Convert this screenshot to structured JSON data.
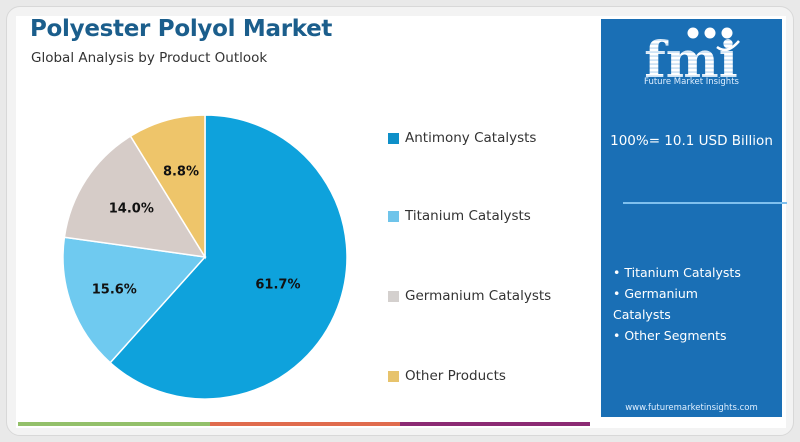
{
  "header": {
    "title": "Polyester Polyol Market",
    "subtitle": "Global Analysis by Product Outlook"
  },
  "chart_data": {
    "type": "pie",
    "title": "Polyester Polyol Market",
    "subtitle": "Global Analysis by Product Outlook",
    "categories": [
      "Antimony Catalysts",
      "Titanium Catalysts",
      "Germanium Catalysts",
      "Other Products"
    ],
    "values": [
      61.7,
      15.6,
      14.0,
      8.8
    ],
    "labels": [
      "61.7%",
      "15.6%",
      "14.0%",
      "8.8%"
    ],
    "colors": [
      "#0ea2dc",
      "#6fcaf0",
      "#d6ccc8",
      "#eec56a"
    ],
    "legend_position": "right",
    "total_label": "100%= 10.1 USD Billion",
    "start_angle": "12 o'clock, clockwise"
  },
  "legend": {
    "items": [
      {
        "label": "Antimony Catalysts",
        "color": "#0e8fc8"
      },
      {
        "label": "Titanium Catalysts",
        "color": "#6fc4ea"
      },
      {
        "label": "Germanium Catalysts",
        "color": "#d4d0ce"
      },
      {
        "label": "Other Products",
        "color": "#e7c36c"
      }
    ]
  },
  "sidebar": {
    "logo_mark": "fmi",
    "logo_text": "Future Market Insights",
    "total": "100%= 10.1 USD Billion",
    "segments": [
      "• Titanium Catalysts",
      "• Germanium",
      "Catalysts",
      "• Other Segments"
    ],
    "url": "www.futuremarketinsights.com",
    "bg_color": "#1a6fb5"
  },
  "footer_stripes": [
    "#93c06a",
    "#e06b4d",
    "#8b2a73"
  ]
}
